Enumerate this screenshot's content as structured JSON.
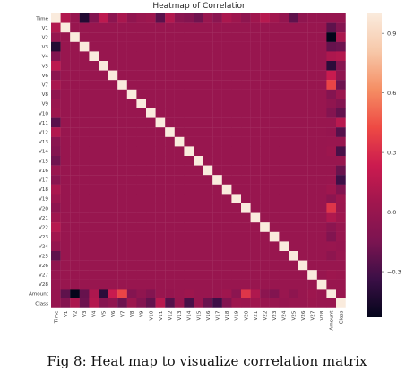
{
  "chart_data": {
    "type": "heatmap",
    "title": "Heatmap of Correlation",
    "labels": [
      "Time",
      "V1",
      "V2",
      "V3",
      "V4",
      "V5",
      "V6",
      "V7",
      "V8",
      "V9",
      "V10",
      "V11",
      "V12",
      "V13",
      "V14",
      "V15",
      "V16",
      "V17",
      "V18",
      "V19",
      "V20",
      "V21",
      "V22",
      "V23",
      "V24",
      "V25",
      "V26",
      "V27",
      "V28",
      "Amount",
      "Class"
    ],
    "x_tick_labels": [
      "Time",
      "V1",
      "V2",
      "V3",
      "V4",
      "V5",
      "V6",
      "V7",
      "V8",
      "V9",
      "V10",
      "V11",
      "V12",
      "V13",
      "V14",
      "V15",
      "V16",
      "V17",
      "V18",
      "V19",
      "V20",
      "V21",
      "V22",
      "V23",
      "V24",
      "V25",
      "V26",
      "V27",
      "V28",
      "Amount",
      "Class"
    ],
    "y_tick_labels": [
      "Time",
      "V1",
      "V2",
      "V3",
      "V4",
      "V5",
      "V6",
      "V7",
      "V8",
      "V9",
      "V10",
      "V11",
      "V12",
      "V13",
      "V14",
      "V15",
      "V16",
      "V17",
      "V18",
      "V19",
      "V20",
      "V21",
      "V22",
      "V23",
      "V24",
      "V25",
      "V26",
      "V27",
      "V28",
      "Amount",
      "Class"
    ],
    "colorbar": {
      "range": [
        -0.53,
        1.0
      ],
      "ticks": [
        -0.3,
        0.0,
        0.3,
        0.6,
        0.9
      ],
      "tick_labels": [
        "−0.3",
        "0.0",
        "0.3",
        "0.6",
        "0.9"
      ]
    },
    "colormap": [
      "#03051a",
      "#3b0f46",
      "#7b1451",
      "#a0164e",
      "#cb1b4f",
      "#ee4a44",
      "#f58e64",
      "#f7c8a9",
      "#faebdd"
    ],
    "correlations": {
      "Time": {
        "V1": 0.12,
        "V2": -0.01,
        "V3": -0.42,
        "V4": -0.11,
        "V5": 0.17,
        "V6": -0.06,
        "V7": 0.08,
        "V8": -0.04,
        "V9": 0.01,
        "V10": 0.03,
        "V11": -0.25,
        "V12": 0.12,
        "V13": -0.07,
        "V14": -0.1,
        "V15": -0.18,
        "V16": 0.01,
        "V17": -0.07,
        "V18": 0.09,
        "V19": 0.03,
        "V20": -0.05,
        "V21": 0.04,
        "V22": 0.14,
        "V23": 0.05,
        "V24": -0.02,
        "V25": -0.23,
        "V26": -0.04,
        "V27": -0.01,
        "V28": -0.01,
        "Amount": -0.01,
        "Class": -0.01
      },
      "Amount": {
        "V1": -0.23,
        "V2": -0.53,
        "V3": -0.21,
        "V4": 0.1,
        "V5": -0.39,
        "V6": 0.22,
        "V7": 0.4,
        "V8": -0.1,
        "V9": -0.04,
        "V10": -0.1,
        "V11": 0.0,
        "V12": -0.01,
        "V13": 0.01,
        "V14": 0.03,
        "V15": -0.0,
        "V16": -0.0,
        "V17": 0.01,
        "V18": 0.04,
        "V19": -0.06,
        "V20": 0.34,
        "V21": 0.11,
        "V22": -0.06,
        "V23": -0.11,
        "V24": 0.01,
        "V25": -0.05,
        "V26": -0.0,
        "V27": 0.03,
        "V28": 0.01,
        "Class": 0.01
      },
      "Class": {
        "V1": -0.1,
        "V2": 0.09,
        "V3": -0.19,
        "V4": 0.13,
        "V5": -0.09,
        "V6": -0.04,
        "V7": -0.19,
        "V8": 0.02,
        "V9": -0.1,
        "V10": -0.22,
        "V11": 0.15,
        "V12": -0.26,
        "V13": -0.0,
        "V14": -0.3,
        "V15": -0.0,
        "V16": -0.2,
        "V17": -0.33,
        "V18": -0.11,
        "V19": 0.03,
        "V20": 0.02,
        "V21": 0.04,
        "V22": 0.0,
        "V23": -0.0,
        "V24": -0.01,
        "V25": 0.0,
        "V26": 0.0,
        "V27": 0.02,
        "V28": 0.01
      }
    }
  },
  "caption": "Fig 8: Heat map to visualize correlation matrix"
}
